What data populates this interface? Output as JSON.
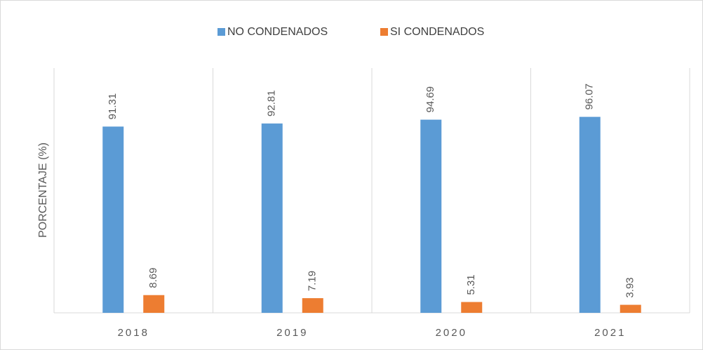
{
  "chart_data": {
    "type": "bar",
    "ylabel": "PORCENTAJE (%)",
    "categories": [
      "2018",
      "2019",
      "2020",
      "2021"
    ],
    "series": [
      {
        "name": "NO CONDENADOS",
        "color": "#5b9bd5",
        "values": [
          91.31,
          92.81,
          94.69,
          96.07
        ]
      },
      {
        "name": "SI CONDENADOS",
        "color": "#ed7d31",
        "values": [
          8.69,
          7.19,
          5.31,
          3.93
        ]
      }
    ],
    "ylim": [
      0,
      120
    ],
    "legend": "top"
  }
}
